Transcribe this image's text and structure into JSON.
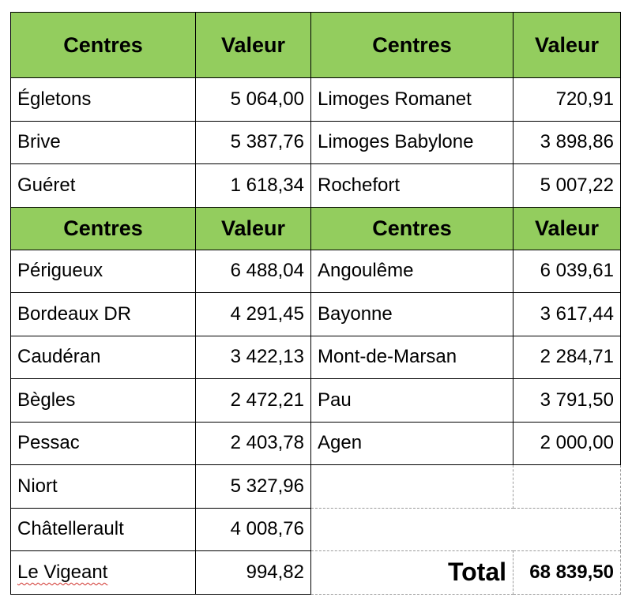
{
  "header": {
    "centres": "Centres",
    "valeur": "Valeur"
  },
  "section1": {
    "left": [
      {
        "name": "Égletons",
        "value": "5 064,00"
      },
      {
        "name": "Brive",
        "value": "5 387,76"
      },
      {
        "name": "Guéret",
        "value": "1 618,34"
      }
    ],
    "right": [
      {
        "name": "Limoges Romanet",
        "value": "720,91"
      },
      {
        "name": "Limoges Babylone",
        "value": "3 898,86"
      },
      {
        "name": "Rochefort",
        "value": "5 007,22"
      }
    ]
  },
  "section2": {
    "left": [
      {
        "name": "Périgueux",
        "value": "6 488,04"
      },
      {
        "name": "Bordeaux DR",
        "value": "4 291,45"
      },
      {
        "name": "Caudéran",
        "value": "3 422,13"
      },
      {
        "name": "Bègles",
        "value": "2 472,21"
      },
      {
        "name": "Pessac",
        "value": "2 403,78"
      },
      {
        "name": "Niort",
        "value": "5 327,96"
      },
      {
        "name": "Châtellerault",
        "value": "4 008,76"
      },
      {
        "name": "Le Vigeant",
        "value": "994,82"
      }
    ],
    "right": [
      {
        "name": "Angoulême",
        "value": "6 039,61"
      },
      {
        "name": "Bayonne",
        "value": "3 617,44"
      },
      {
        "name": "Mont-de-Marsan",
        "value": "2 284,71"
      },
      {
        "name": "Pau",
        "value": "3 791,50"
      },
      {
        "name": "Agen",
        "value": "2 000,00"
      }
    ]
  },
  "total": {
    "label": "Total",
    "value": "68 839,50"
  },
  "colors": {
    "header_bg": "#93cd5e",
    "spellcheck_underline": "#d0302a"
  }
}
